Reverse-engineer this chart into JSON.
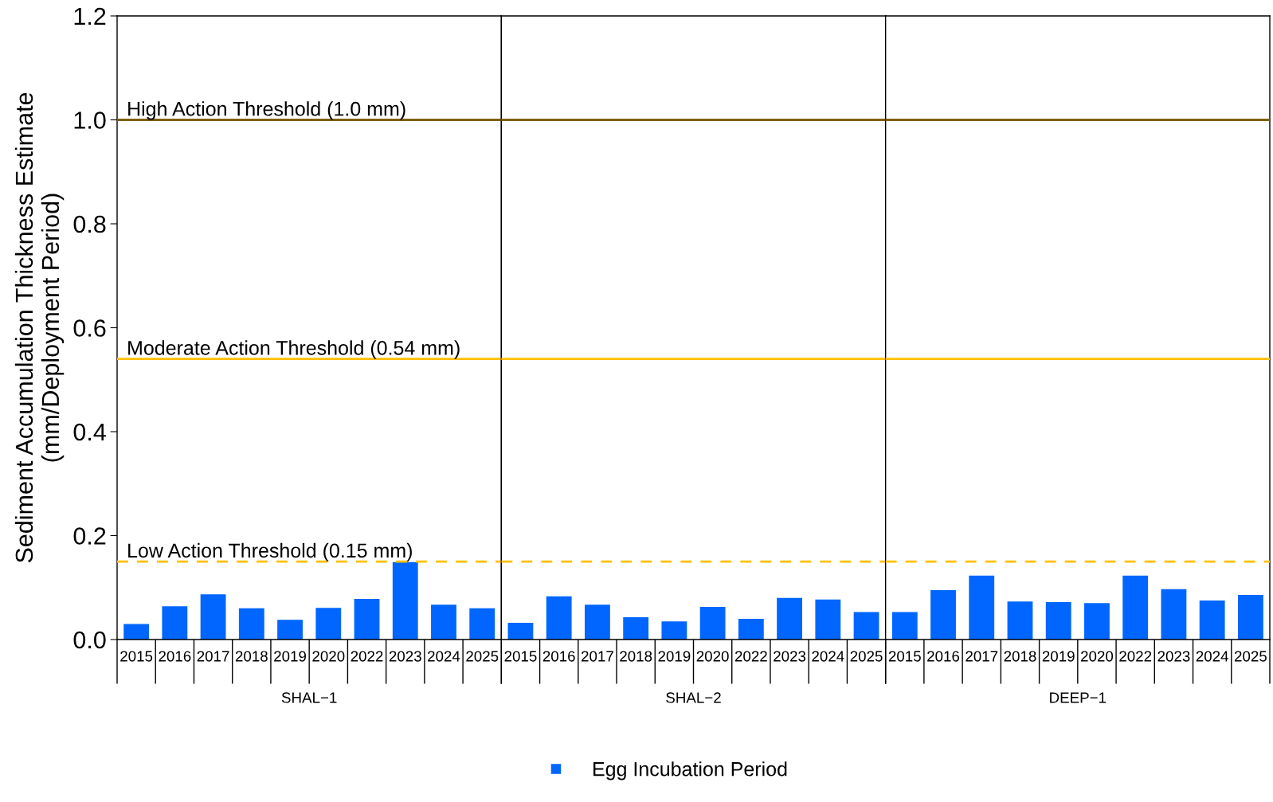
{
  "chart_data": [
    {
      "type": "bar",
      "xlabel": "SHAL−1",
      "ylabel": "Sediment Accumulation Thickness Estimate\n(mm/Deployment Period)",
      "categories": [
        "2015",
        "2016",
        "2017",
        "2018",
        "2019",
        "2020",
        "2022",
        "2023",
        "2024",
        "2025"
      ],
      "series": [
        {
          "name": "Egg Incubation Period",
          "color": "#0066ff",
          "values": [
            0.03,
            0.064,
            0.087,
            0.06,
            0.038,
            0.061,
            0.078,
            0.149,
            0.067,
            0.06
          ]
        }
      ],
      "ylim": [
        0,
        1.2
      ],
      "yticks": [
        {
          "value": 0,
          "label": "0.0"
        },
        {
          "value": 0.2,
          "label": "0.2"
        },
        {
          "value": 0.4,
          "label": "0.4"
        },
        {
          "value": 0.6,
          "label": "0.6"
        },
        {
          "value": 0.8,
          "label": "0.8"
        },
        {
          "value": 1,
          "label": "1.0"
        },
        {
          "value": 1.2,
          "label": "1.2"
        }
      ],
      "ref_lines": [
        {
          "axis": "y",
          "value": 1.0,
          "label": "High Action Threshold (1.0 mm)",
          "color": "#7f6000",
          "line_style": "solid"
        },
        {
          "axis": "y",
          "value": 0.54,
          "label": "Moderate Action Threshold (0.54 mm)",
          "color": "#ffc000",
          "line_style": "solid"
        },
        {
          "axis": "y",
          "value": 0.15,
          "label": "Low Action Threshold (0.15 mm)",
          "color": "#ffc000",
          "line_style": "dashed"
        }
      ],
      "legend": "bottom",
      "grid": false
    },
    {
      "type": "bar",
      "xlabel": "SHAL−2",
      "categories": [
        "2015",
        "2016",
        "2017",
        "2018",
        "2019",
        "2020",
        "2022",
        "2023",
        "2024",
        "2025"
      ],
      "series": [
        {
          "color": "#0066ff",
          "values": [
            0.032,
            0.083,
            0.067,
            0.043,
            0.035,
            0.063,
            0.04,
            0.08,
            0.077,
            0.053
          ]
        }
      ],
      "ylim": [
        0,
        1.2
      ],
      "tick_labels": "x",
      "ref_lines": [
        {
          "axis": "y",
          "value": 1.0,
          "color": "#7f6000",
          "line_style": "solid"
        },
        {
          "axis": "y",
          "value": 0.54,
          "color": "#ffc000",
          "line_style": "solid"
        },
        {
          "axis": "y",
          "value": 0.15,
          "color": "#ffc000",
          "line_style": "dashed"
        }
      ],
      "legend": false,
      "grid": false
    },
    {
      "type": "bar",
      "xlabel": "DEEP−1",
      "categories": [
        "2015",
        "2016",
        "2017",
        "2018",
        "2019",
        "2020",
        "2022",
        "2023",
        "2024",
        "2025"
      ],
      "series": [
        {
          "color": "#0066ff",
          "values": [
            0.053,
            0.095,
            0.123,
            0.073,
            0.072,
            0.07,
            0.123,
            0.097,
            0.075,
            0.086
          ]
        }
      ],
      "ylim": [
        0,
        1.2
      ],
      "tick_labels": "x",
      "ref_lines": [
        {
          "axis": "y",
          "value": 1.0,
          "color": "#7f6000",
          "line_style": "solid"
        },
        {
          "axis": "y",
          "value": 0.54,
          "color": "#ffc000",
          "line_style": "solid"
        },
        {
          "axis": "y",
          "value": 0.15,
          "color": "#ffc000",
          "line_style": "dashed"
        }
      ],
      "legend": false,
      "grid": false
    }
  ]
}
